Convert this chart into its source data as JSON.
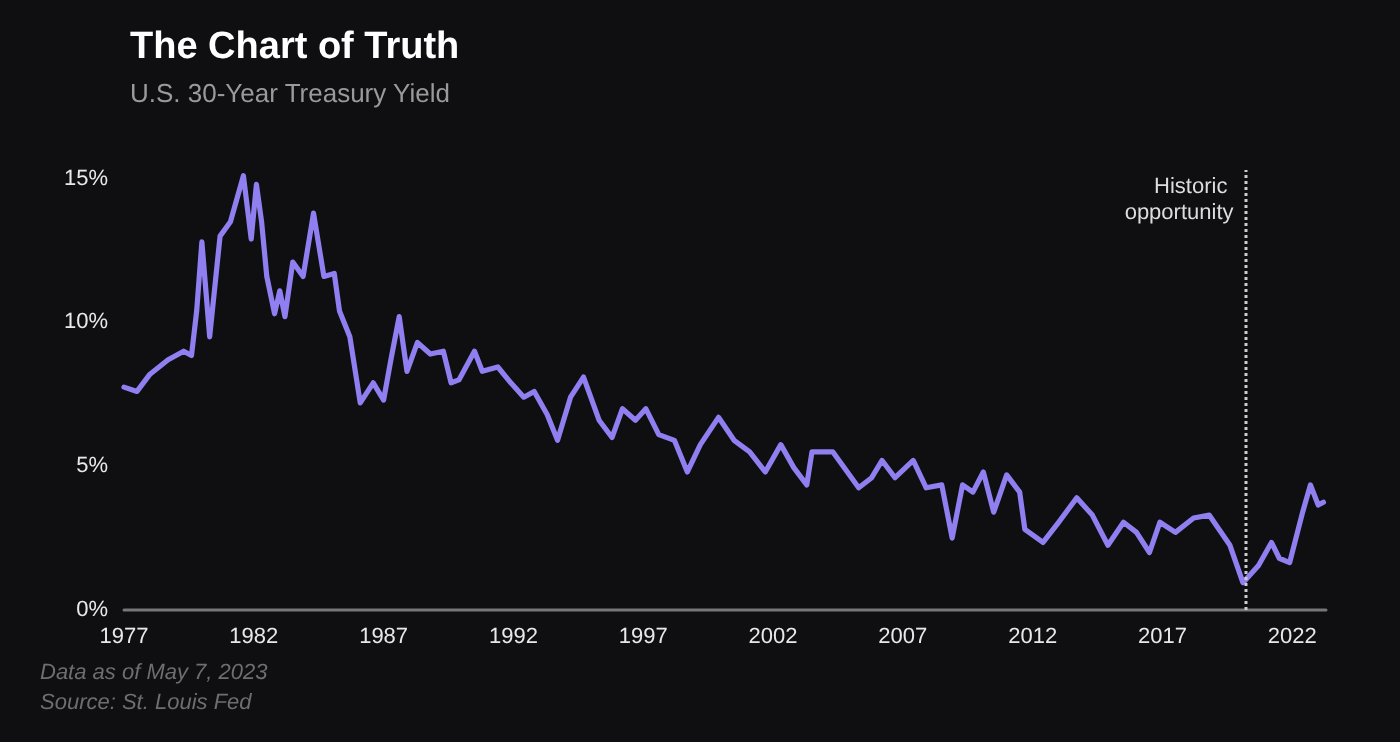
{
  "chart_data": {
    "type": "line",
    "title": "The Chart of Truth",
    "subtitle": "U.S. 30-Year Treasury Yield",
    "annotations": [
      "Data as of May 7, 2023",
      "Source: St. Louis Fed"
    ],
    "x": [
      1977.0,
      1977.5,
      1978.0,
      1978.7,
      1979.3,
      1979.6,
      1979.8,
      1980.0,
      1980.3,
      1980.7,
      1981.1,
      1981.6,
      1981.9,
      1982.1,
      1982.3,
      1982.5,
      1982.8,
      1983.0,
      1983.2,
      1983.5,
      1983.9,
      1984.3,
      1984.7,
      1985.1,
      1985.3,
      1985.7,
      1986.1,
      1986.6,
      1987.0,
      1987.3,
      1987.6,
      1987.9,
      1988.3,
      1988.8,
      1989.3,
      1989.6,
      1989.9,
      1990.5,
      1990.8,
      1991.4,
      1991.9,
      1992.4,
      1992.8,
      1993.3,
      1993.7,
      1994.2,
      1994.7,
      1995.3,
      1995.8,
      1996.2,
      1996.7,
      1997.1,
      1997.6,
      1998.2,
      1998.7,
      1999.2,
      1999.9,
      2000.5,
      2001.1,
      2001.7,
      2002.3,
      2002.8,
      2003.3,
      2003.5,
      2004.3,
      2005.3,
      2005.8,
      2006.2,
      2006.7,
      2007.4,
      2007.9,
      2008.5,
      2008.9,
      2009.3,
      2009.7,
      2010.1,
      2010.5,
      2011.0,
      2011.5,
      2011.7,
      2012.4,
      2013.0,
      2013.7,
      2014.3,
      2014.9,
      2015.5,
      2016.0,
      2016.5,
      2016.9,
      2017.5,
      2018.2,
      2018.8,
      2019.6,
      2020.1,
      2020.7,
      2021.2,
      2021.5,
      2021.9,
      2022.4,
      2022.7,
      2023.0,
      2023.2
    ],
    "series": [
      {
        "color": "#8f7ff0",
        "values": [
          7.75,
          7.6,
          8.2,
          8.7,
          9.0,
          8.85,
          10.4,
          12.8,
          9.5,
          13.0,
          13.5,
          15.1,
          12.9,
          14.8,
          13.5,
          11.6,
          10.3,
          11.1,
          10.2,
          12.1,
          11.6,
          13.8,
          11.6,
          11.7,
          10.4,
          9.5,
          7.2,
          7.9,
          7.3,
          8.8,
          10.2,
          8.3,
          9.3,
          8.9,
          9.0,
          7.9,
          8.0,
          9.0,
          8.3,
          8.45,
          7.9,
          7.4,
          7.6,
          6.8,
          5.9,
          7.4,
          8.1,
          6.6,
          6.0,
          7.0,
          6.6,
          7.0,
          6.1,
          5.9,
          4.8,
          5.75,
          6.7,
          5.9,
          5.5,
          4.8,
          5.75,
          4.95,
          4.35,
          5.5,
          5.5,
          4.25,
          4.6,
          5.2,
          4.6,
          5.2,
          4.25,
          4.35,
          2.5,
          4.35,
          4.1,
          4.8,
          3.4,
          4.7,
          4.1,
          2.8,
          2.35,
          3.05,
          3.9,
          3.3,
          2.25,
          3.05,
          2.7,
          2.0,
          3.05,
          2.7,
          3.2,
          3.3,
          2.25,
          0.95,
          1.55,
          2.35,
          1.8,
          1.65,
          3.4,
          4.35,
          3.65,
          3.75
        ]
      }
    ],
    "xlim": [
      1977,
      2023.3
    ],
    "xticks": [
      1977,
      1982,
      1987,
      1992,
      1997,
      2002,
      2007,
      2012,
      2017,
      2022
    ],
    "ylim": [
      0,
      15.3
    ],
    "yticks": [
      {
        "value": 0,
        "label": "0%"
      },
      {
        "value": 5,
        "label": "5%"
      },
      {
        "value": 10,
        "label": "10%"
      },
      {
        "value": 15,
        "label": "15%"
      }
    ],
    "ref_lines": [
      {
        "axis": "x",
        "value": 2020.2,
        "label": "Historic opportunity",
        "color": "#cccccc",
        "line_style": "dotted"
      }
    ],
    "marker": "none"
  }
}
